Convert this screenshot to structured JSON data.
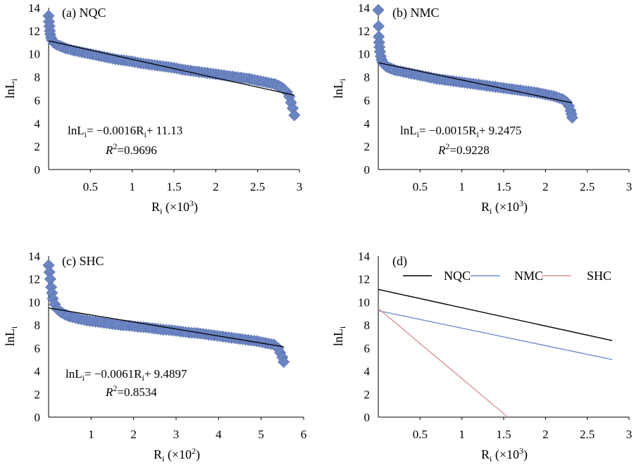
{
  "colors": {
    "marker": "#6b84c2",
    "marker_stroke": "#5c74b3",
    "fit_line": "#000000",
    "NQC": "#000000",
    "NMC": "#6f90cf",
    "SHC": "#d99694"
  },
  "chart_data": [
    {
      "panel": "a",
      "type": "scatter",
      "title": "(a) NQC",
      "xlabel": "Ri (×10³)",
      "xlabel_main": "R",
      "xlabel_sub": "i",
      "xlabel_tail": " (×10",
      "xlabel_sup": "3",
      "xlabel_close": ")",
      "ylabel": "lnLi",
      "ylabel_main": "lnL",
      "ylabel_sub": "i",
      "xlim": [
        0,
        3
      ],
      "ylim": [
        0,
        14
      ],
      "xticks": [
        "0.5",
        "1",
        "1.5",
        "2",
        "2.5",
        "3"
      ],
      "yticks": [
        "0",
        "2",
        "4",
        "6",
        "8",
        "10",
        "12",
        "14"
      ],
      "points": {
        "x": [
          0.0,
          0.005,
          0.01,
          0.015,
          0.02,
          0.03,
          0.04,
          0.06,
          0.08,
          0.1,
          0.15,
          0.2,
          0.3,
          0.4,
          0.5,
          0.6,
          0.7,
          0.8,
          0.9,
          1.0,
          1.1,
          1.2,
          1.3,
          1.4,
          1.5,
          1.6,
          1.7,
          1.8,
          1.9,
          2.0,
          2.1,
          2.2,
          2.3,
          2.4,
          2.5,
          2.6,
          2.7,
          2.75,
          2.8,
          2.85,
          2.88,
          2.9,
          2.92,
          2.94
        ],
        "y": [
          13.3,
          12.8,
          12.4,
          12.0,
          11.7,
          11.4,
          11.2,
          11.0,
          10.9,
          10.8,
          10.65,
          10.5,
          10.3,
          10.15,
          10.0,
          9.85,
          9.7,
          9.55,
          9.45,
          9.35,
          9.2,
          9.1,
          9.0,
          8.9,
          8.8,
          8.65,
          8.55,
          8.45,
          8.35,
          8.25,
          8.15,
          8.05,
          7.95,
          7.85,
          7.7,
          7.55,
          7.4,
          7.25,
          7.05,
          6.7,
          6.3,
          5.8,
          5.3,
          4.7
        ]
      },
      "fit": {
        "slope": -0.0016,
        "intercept": 11.13,
        "x_range": [
          0,
          2.94
        ]
      },
      "equation": {
        "lhs_main": "lnL",
        "lhs_sub": "i",
        "rhs_a": "= −0.0016R",
        "rhs_sub": "i",
        "rhs_b": "+ 11.13",
        "r2_main": "R",
        "r2_sup": "2",
        "r2_val": "=0.9696"
      }
    },
    {
      "panel": "b",
      "type": "scatter",
      "title": "(b) NMC",
      "xlabel": "Ri (×10³)",
      "xlabel_main": "R",
      "xlabel_sub": "i",
      "xlabel_tail": " (×10",
      "xlabel_sup": "3",
      "xlabel_close": ")",
      "ylabel": "lnLi",
      "ylabel_main": "lnL",
      "ylabel_sub": "i",
      "xlim": [
        0,
        3
      ],
      "ylim": [
        0,
        14
      ],
      "xticks": [
        "0.5",
        "1",
        "1.5",
        "2",
        "2.5",
        "3"
      ],
      "yticks": [
        "0",
        "2",
        "4",
        "6",
        "8",
        "10",
        "12",
        "14"
      ],
      "points": {
        "x": [
          0.0,
          0.003,
          0.006,
          0.01,
          0.015,
          0.02,
          0.03,
          0.04,
          0.05,
          0.07,
          0.1,
          0.15,
          0.2,
          0.3,
          0.4,
          0.5,
          0.6,
          0.7,
          0.8,
          0.9,
          1.0,
          1.1,
          1.2,
          1.3,
          1.4,
          1.5,
          1.6,
          1.7,
          1.8,
          1.9,
          2.0,
          2.1,
          2.2,
          2.25,
          2.28,
          2.3,
          2.31,
          2.32
        ],
        "y": [
          13.8,
          12.4,
          11.5,
          11.0,
          10.6,
          10.2,
          9.8,
          9.5,
          9.3,
          9.1,
          8.9,
          8.75,
          8.6,
          8.45,
          8.3,
          8.15,
          8.0,
          7.85,
          7.75,
          7.65,
          7.55,
          7.45,
          7.35,
          7.25,
          7.15,
          7.05,
          6.95,
          6.85,
          6.75,
          6.65,
          6.5,
          6.35,
          6.1,
          5.85,
          5.5,
          5.1,
          4.8,
          4.5
        ]
      },
      "fit": {
        "slope": -0.0015,
        "intercept": 9.2475,
        "x_range": [
          0,
          2.32
        ]
      },
      "equation": {
        "lhs_main": "lnL",
        "lhs_sub": "i",
        "rhs_a": "= −0.0015R",
        "rhs_sub": "i",
        "rhs_b": "+ 9.2475",
        "r2_main": "R",
        "r2_sup": "2",
        "r2_val": "=0.9228"
      }
    },
    {
      "panel": "c",
      "type": "scatter",
      "title": "(c) SHC",
      "xlabel": "Ri (×10²)",
      "xlabel_main": "R",
      "xlabel_sub": "i",
      "xlabel_tail": " (×10",
      "xlabel_sup": "2",
      "xlabel_close": ")",
      "ylabel": "lnLi",
      "ylabel_main": "lnL",
      "ylabel_sub": "i",
      "xlim": [
        0,
        6
      ],
      "ylim": [
        0,
        14
      ],
      "xticks": [
        "1",
        "2",
        "3",
        "4",
        "5",
        "6"
      ],
      "yticks": [
        "0",
        "2",
        "4",
        "6",
        "8",
        "10",
        "12",
        "14"
      ],
      "points": {
        "x": [
          0.0,
          0.02,
          0.04,
          0.06,
          0.08,
          0.1,
          0.15,
          0.2,
          0.3,
          0.4,
          0.5,
          0.7,
          0.9,
          1.1,
          1.3,
          1.5,
          1.7,
          1.9,
          2.1,
          2.3,
          2.5,
          2.7,
          2.9,
          3.1,
          3.3,
          3.5,
          3.7,
          3.9,
          4.1,
          4.3,
          4.5,
          4.7,
          4.9,
          5.1,
          5.3,
          5.4,
          5.45,
          5.5,
          5.53
        ],
        "y": [
          13.2,
          12.6,
          12.0,
          11.3,
          10.8,
          10.3,
          9.8,
          9.4,
          9.1,
          8.9,
          8.75,
          8.55,
          8.4,
          8.3,
          8.2,
          8.1,
          8.0,
          7.95,
          7.85,
          7.8,
          7.7,
          7.6,
          7.55,
          7.45,
          7.35,
          7.3,
          7.2,
          7.1,
          7.0,
          6.9,
          6.8,
          6.7,
          6.6,
          6.45,
          6.3,
          6.0,
          5.6,
          5.2,
          4.8
        ]
      },
      "fit": {
        "slope": -0.0061,
        "intercept": 9.4897,
        "x_range": [
          0,
          5.53
        ]
      },
      "equation": {
        "lhs_main": "lnL",
        "lhs_sub": "i",
        "rhs_a": "= −0.0061R",
        "rhs_sub": "i",
        "rhs_b": "+ 9.4897",
        "r2_main": "R",
        "r2_sup": "2",
        "r2_val": "=0.8534"
      }
    },
    {
      "panel": "d",
      "type": "line",
      "title": "(d)",
      "xlabel": "Ri (×10³)",
      "xlabel_main": "R",
      "xlabel_sub": "i",
      "xlabel_tail": " (×10",
      "xlabel_sup": "3",
      "xlabel_close": ")",
      "ylabel": "lnLi",
      "ylabel_main": "lnL",
      "ylabel_sub": "i",
      "xlim": [
        0,
        3
      ],
      "ylim": [
        0,
        14
      ],
      "xticks": [
        "0.5",
        "1",
        "1.5",
        "2",
        "2.5",
        "3"
      ],
      "yticks": [
        "0",
        "2",
        "4",
        "6",
        "8",
        "10",
        "12",
        "14"
      ],
      "legend_position": "top",
      "series": [
        {
          "name": "NQC",
          "x": [
            0,
            2.8
          ],
          "y": [
            11.1,
            6.65
          ]
        },
        {
          "name": "NMC",
          "x": [
            0,
            2.8
          ],
          "y": [
            9.25,
            5.0
          ]
        },
        {
          "name": "SHC",
          "x": [
            0,
            1.55
          ],
          "y": [
            9.45,
            0
          ]
        }
      ]
    }
  ]
}
